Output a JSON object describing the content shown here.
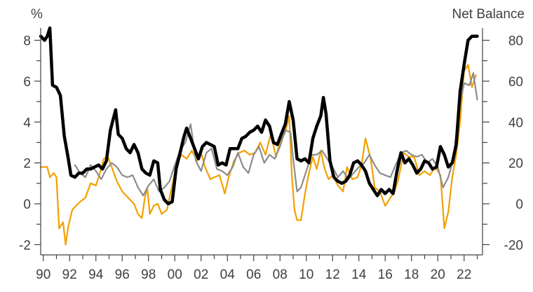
{
  "chart_data": {
    "type": "line",
    "left_axis_unit": "%",
    "right_axis_label": "Net Balance",
    "x_ticks": [
      "90",
      "92",
      "94",
      "96",
      "98",
      "00",
      "02",
      "04",
      "06",
      "08",
      "10",
      "12",
      "14",
      "16",
      "18",
      "20",
      "22"
    ],
    "x_tick_years": [
      1990,
      1992,
      1994,
      1996,
      1998,
      2000,
      2002,
      2004,
      2006,
      2008,
      2010,
      2012,
      2014,
      2016,
      2018,
      2020,
      2022
    ],
    "xlim": [
      1989.8,
      2023.4
    ],
    "ylim_left": [
      -2.5,
      8.6
    ],
    "yticks_left": [
      -2,
      0,
      2,
      4,
      6,
      8
    ],
    "ylim_right": [
      -25,
      86
    ],
    "yticks_right": [
      -20,
      0,
      20,
      40,
      60,
      80
    ],
    "grid": false,
    "legend": "none",
    "series": [
      {
        "axis": "left",
        "color": "#f2a000",
        "width": 2.2,
        "points": [
          [
            1989.8,
            1.8
          ],
          [
            1990.3,
            1.8
          ],
          [
            1990.5,
            1.3
          ],
          [
            1990.8,
            1.5
          ],
          [
            1991.0,
            1.3
          ],
          [
            1991.2,
            -1.2
          ],
          [
            1991.5,
            -0.9
          ],
          [
            1991.7,
            -2.0
          ],
          [
            1991.9,
            -1.1
          ],
          [
            1992.2,
            -0.3
          ],
          [
            1992.5,
            -0.1
          ],
          [
            1992.8,
            0.1
          ],
          [
            1993.2,
            0.3
          ],
          [
            1993.6,
            1.0
          ],
          [
            1994.0,
            0.9
          ],
          [
            1994.3,
            1.5
          ],
          [
            1994.6,
            2.2
          ],
          [
            1994.9,
            2.3
          ],
          [
            1995.2,
            1.8
          ],
          [
            1995.6,
            1.1
          ],
          [
            1996.0,
            0.6
          ],
          [
            1996.3,
            0.4
          ],
          [
            1996.6,
            0.2
          ],
          [
            1996.9,
            0.0
          ],
          [
            1997.2,
            -0.5
          ],
          [
            1997.5,
            -0.7
          ],
          [
            1997.7,
            0.2
          ],
          [
            1997.9,
            0.8
          ],
          [
            1998.1,
            -0.5
          ],
          [
            1998.4,
            -0.1
          ],
          [
            1998.7,
            0.0
          ],
          [
            1999.0,
            -0.5
          ],
          [
            1999.4,
            -0.3
          ],
          [
            1999.8,
            0.9
          ],
          [
            2000.1,
            1.8
          ],
          [
            2000.5,
            2.4
          ],
          [
            2000.9,
            2.2
          ],
          [
            2001.3,
            2.6
          ],
          [
            2001.7,
            2.1
          ],
          [
            2002.0,
            2.5
          ],
          [
            2002.3,
            1.8
          ],
          [
            2002.7,
            1.2
          ],
          [
            2003.0,
            1.3
          ],
          [
            2003.4,
            1.4
          ],
          [
            2003.8,
            0.5
          ],
          [
            2004.1,
            1.3
          ],
          [
            2004.5,
            2.1
          ],
          [
            2004.9,
            2.5
          ],
          [
            2005.3,
            2.6
          ],
          [
            2005.7,
            2.4
          ],
          [
            2006.1,
            2.5
          ],
          [
            2006.5,
            3.0
          ],
          [
            2006.9,
            2.4
          ],
          [
            2007.3,
            3.4
          ],
          [
            2007.7,
            2.3
          ],
          [
            2008.0,
            3.0
          ],
          [
            2008.4,
            3.5
          ],
          [
            2008.7,
            4.3
          ],
          [
            2008.9,
            1.4
          ],
          [
            2009.1,
            -0.3
          ],
          [
            2009.3,
            -0.8
          ],
          [
            2009.6,
            -0.8
          ],
          [
            2009.9,
            0.5
          ],
          [
            2010.2,
            1.5
          ],
          [
            2010.5,
            2.3
          ],
          [
            2010.8,
            1.7
          ],
          [
            2011.1,
            2.6
          ],
          [
            2011.4,
            1.7
          ],
          [
            2011.7,
            1.2
          ],
          [
            2012.0,
            1.4
          ],
          [
            2012.4,
            0.9
          ],
          [
            2012.8,
            0.6
          ],
          [
            2013.1,
            1.8
          ],
          [
            2013.5,
            1.2
          ],
          [
            2013.9,
            1.3
          ],
          [
            2014.2,
            1.9
          ],
          [
            2014.5,
            3.2
          ],
          [
            2014.9,
            2.2
          ],
          [
            2015.2,
            0.8
          ],
          [
            2015.6,
            0.6
          ],
          [
            2016.0,
            -0.1
          ],
          [
            2016.3,
            0.2
          ],
          [
            2016.7,
            0.6
          ],
          [
            2017.0,
            1.2
          ],
          [
            2017.4,
            2.5
          ],
          [
            2017.8,
            2.3
          ],
          [
            2018.2,
            2.3
          ],
          [
            2018.6,
            1.4
          ],
          [
            2019.0,
            1.6
          ],
          [
            2019.4,
            1.4
          ],
          [
            2019.8,
            1.8
          ],
          [
            2020.2,
            1.4
          ],
          [
            2020.5,
            -1.2
          ],
          [
            2020.8,
            -0.4
          ],
          [
            2021.1,
            1.3
          ],
          [
            2021.4,
            2.4
          ],
          [
            2021.7,
            4.0
          ],
          [
            2022.0,
            6.5
          ],
          [
            2022.3,
            6.8
          ],
          [
            2022.6,
            5.7
          ],
          [
            2022.9,
            6.3
          ]
        ]
      },
      {
        "axis": "left",
        "color": "#8c8c8c",
        "width": 2.2,
        "points": [
          [
            1992.4,
            1.9
          ],
          [
            1992.8,
            1.5
          ],
          [
            1993.2,
            1.3
          ],
          [
            1993.6,
            1.9
          ],
          [
            1994.0,
            1.6
          ],
          [
            1994.4,
            1.2
          ],
          [
            1994.8,
            1.7
          ],
          [
            1995.2,
            2.0
          ],
          [
            1995.6,
            1.8
          ],
          [
            1996.0,
            1.4
          ],
          [
            1996.4,
            1.3
          ],
          [
            1996.8,
            1.4
          ],
          [
            1997.2,
            0.8
          ],
          [
            1997.6,
            0.4
          ],
          [
            1998.0,
            0.9
          ],
          [
            1998.4,
            1.2
          ],
          [
            1998.8,
            0.6
          ],
          [
            1999.2,
            0.8
          ],
          [
            1999.6,
            1.1
          ],
          [
            2000.0,
            1.9
          ],
          [
            2000.4,
            2.6
          ],
          [
            2000.8,
            3.0
          ],
          [
            2001.2,
            3.9
          ],
          [
            2001.6,
            2.1
          ],
          [
            2002.0,
            1.6
          ],
          [
            2002.4,
            2.5
          ],
          [
            2002.8,
            2.7
          ],
          [
            2003.2,
            1.7
          ],
          [
            2003.6,
            1.6
          ],
          [
            2004.0,
            1.4
          ],
          [
            2004.4,
            1.8
          ],
          [
            2004.8,
            2.5
          ],
          [
            2005.2,
            1.8
          ],
          [
            2005.6,
            1.5
          ],
          [
            2006.0,
            2.4
          ],
          [
            2006.4,
            2.8
          ],
          [
            2006.8,
            2.0
          ],
          [
            2007.2,
            2.4
          ],
          [
            2007.6,
            2.2
          ],
          [
            2008.0,
            2.8
          ],
          [
            2008.4,
            3.6
          ],
          [
            2008.8,
            3.5
          ],
          [
            2009.0,
            2.2
          ],
          [
            2009.3,
            0.6
          ],
          [
            2009.6,
            0.8
          ],
          [
            2010.0,
            1.6
          ],
          [
            2010.4,
            2.4
          ],
          [
            2010.8,
            2.4
          ],
          [
            2011.2,
            2.6
          ],
          [
            2011.6,
            2.2
          ],
          [
            2012.0,
            1.8
          ],
          [
            2012.4,
            1.3
          ],
          [
            2012.8,
            1.6
          ],
          [
            2013.2,
            1.2
          ],
          [
            2013.6,
            1.5
          ],
          [
            2014.0,
            1.8
          ],
          [
            2014.4,
            2.0
          ],
          [
            2014.8,
            2.4
          ],
          [
            2015.2,
            1.9
          ],
          [
            2015.6,
            1.5
          ],
          [
            2016.0,
            1.4
          ],
          [
            2016.4,
            1.3
          ],
          [
            2016.8,
            1.9
          ],
          [
            2017.2,
            2.5
          ],
          [
            2017.6,
            2.6
          ],
          [
            2018.0,
            2.4
          ],
          [
            2018.4,
            2.3
          ],
          [
            2018.8,
            2.4
          ],
          [
            2019.2,
            2.0
          ],
          [
            2019.6,
            2.2
          ],
          [
            2020.0,
            1.8
          ],
          [
            2020.4,
            0.8
          ],
          [
            2020.8,
            1.3
          ],
          [
            2021.2,
            2.2
          ],
          [
            2021.6,
            4.6
          ],
          [
            2022.0,
            5.9
          ],
          [
            2022.4,
            5.8
          ],
          [
            2022.7,
            6.4
          ],
          [
            2023.0,
            5.1
          ]
        ]
      },
      {
        "axis": "right",
        "color": "#000000",
        "width": 4.5,
        "points": [
          [
            1989.8,
            82
          ],
          [
            1990.1,
            80
          ],
          [
            1990.3,
            82
          ],
          [
            1990.5,
            86
          ],
          [
            1990.7,
            58
          ],
          [
            1991.0,
            57
          ],
          [
            1991.3,
            53
          ],
          [
            1991.6,
            33
          ],
          [
            1991.9,
            22
          ],
          [
            1992.1,
            14
          ],
          [
            1992.4,
            13
          ],
          [
            1992.7,
            15
          ],
          [
            1993.0,
            15
          ],
          [
            1993.3,
            17
          ],
          [
            1993.6,
            17
          ],
          [
            1993.9,
            18
          ],
          [
            1994.2,
            19
          ],
          [
            1994.5,
            17
          ],
          [
            1994.8,
            21
          ],
          [
            1995.1,
            36
          ],
          [
            1995.3,
            41
          ],
          [
            1995.5,
            46
          ],
          [
            1995.7,
            34
          ],
          [
            1996.0,
            32
          ],
          [
            1996.3,
            27
          ],
          [
            1996.6,
            25
          ],
          [
            1996.9,
            29
          ],
          [
            1997.2,
            25
          ],
          [
            1997.5,
            17
          ],
          [
            1997.8,
            15
          ],
          [
            1998.1,
            14
          ],
          [
            1998.4,
            21
          ],
          [
            1998.7,
            20
          ],
          [
            1998.9,
            7
          ],
          [
            1999.2,
            2
          ],
          [
            1999.5,
            0
          ],
          [
            1999.8,
            1
          ],
          [
            2000.1,
            17
          ],
          [
            2000.4,
            25
          ],
          [
            2000.7,
            33
          ],
          [
            2000.9,
            37
          ],
          [
            2001.2,
            32
          ],
          [
            2001.5,
            27
          ],
          [
            2001.8,
            22
          ],
          [
            2002.1,
            28
          ],
          [
            2002.4,
            30
          ],
          [
            2002.7,
            29
          ],
          [
            2003.0,
            28
          ],
          [
            2003.3,
            19
          ],
          [
            2003.6,
            20
          ],
          [
            2003.9,
            19
          ],
          [
            2004.2,
            27
          ],
          [
            2004.5,
            27
          ],
          [
            2004.8,
            27
          ],
          [
            2005.1,
            32
          ],
          [
            2005.4,
            33
          ],
          [
            2005.7,
            35
          ],
          [
            2006.0,
            36
          ],
          [
            2006.3,
            38
          ],
          [
            2006.6,
            35
          ],
          [
            2006.9,
            41
          ],
          [
            2007.2,
            38
          ],
          [
            2007.5,
            30
          ],
          [
            2007.8,
            29
          ],
          [
            2008.1,
            34
          ],
          [
            2008.4,
            39
          ],
          [
            2008.7,
            50
          ],
          [
            2009.0,
            41
          ],
          [
            2009.3,
            22
          ],
          [
            2009.6,
            21
          ],
          [
            2009.9,
            22
          ],
          [
            2010.2,
            20
          ],
          [
            2010.5,
            32
          ],
          [
            2010.8,
            38
          ],
          [
            2011.1,
            43
          ],
          [
            2011.3,
            52
          ],
          [
            2011.5,
            44
          ],
          [
            2011.8,
            21
          ],
          [
            2012.1,
            13
          ],
          [
            2012.4,
            11
          ],
          [
            2012.7,
            10
          ],
          [
            2013.0,
            11
          ],
          [
            2013.3,
            14
          ],
          [
            2013.6,
            20
          ],
          [
            2013.9,
            21
          ],
          [
            2014.2,
            19
          ],
          [
            2014.5,
            16
          ],
          [
            2014.8,
            10
          ],
          [
            2015.1,
            7
          ],
          [
            2015.4,
            4
          ],
          [
            2015.7,
            7
          ],
          [
            2016.0,
            5
          ],
          [
            2016.3,
            7
          ],
          [
            2016.6,
            5
          ],
          [
            2016.9,
            16
          ],
          [
            2017.2,
            25
          ],
          [
            2017.5,
            20
          ],
          [
            2017.8,
            22
          ],
          [
            2018.1,
            19
          ],
          [
            2018.4,
            15
          ],
          [
            2018.7,
            17
          ],
          [
            2019.0,
            21
          ],
          [
            2019.3,
            20
          ],
          [
            2019.6,
            17
          ],
          [
            2019.9,
            18
          ],
          [
            2020.2,
            28
          ],
          [
            2020.5,
            24
          ],
          [
            2020.8,
            18
          ],
          [
            2021.1,
            20
          ],
          [
            2021.4,
            29
          ],
          [
            2021.7,
            55
          ],
          [
            2022.0,
            68
          ],
          [
            2022.3,
            80
          ],
          [
            2022.6,
            82
          ],
          [
            2023.0,
            82
          ]
        ]
      }
    ]
  }
}
